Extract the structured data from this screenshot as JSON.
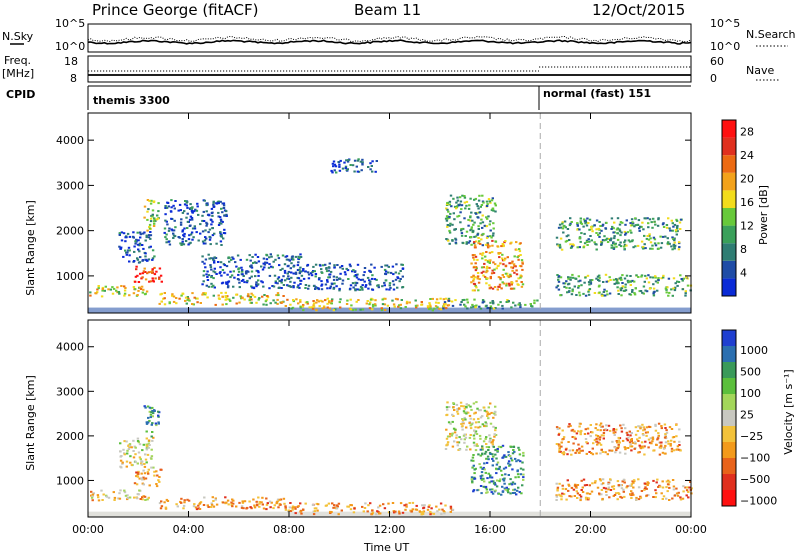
{
  "header": {
    "station": "Prince George (fitACF)",
    "beam": "Beam 11",
    "date": "12/Oct/2015"
  },
  "nsky_panel": {
    "left_label": "N.Sky",
    "right_label": "N.Search",
    "left_ticks": [
      "10^5",
      "10^0"
    ],
    "right_ticks": [
      "10^5",
      "10^0"
    ]
  },
  "freq_panel": {
    "left_label_1": "Freq.",
    "left_label_2": "[MHz]",
    "right_label": "Nave",
    "left_ticks": [
      "18",
      "8"
    ],
    "right_ticks": [
      "60",
      "0"
    ]
  },
  "cpid": {
    "label": "CPID",
    "modes": [
      {
        "name": "themis 3300",
        "start_hour": 0
      },
      {
        "name": "normal (fast) 151",
        "start_hour": 18
      }
    ]
  },
  "chart_data": [
    {
      "type": "heatmap",
      "title": "",
      "ylabel": "Slant Range [km]",
      "xlabel": "Time UT",
      "x_range_hours": [
        0,
        24
      ],
      "ylim": [
        180,
        4600
      ],
      "yticks": [
        "1000",
        "2000",
        "3000",
        "4000"
      ],
      "xticks": [
        "00:00",
        "04:00",
        "08:00",
        "12:00",
        "16:00",
        "20:00",
        "00:00"
      ],
      "colorbar": {
        "label": "Power [dB]",
        "tick_labels": [
          "4",
          "8",
          "12",
          "16",
          "20",
          "24",
          "28"
        ],
        "colors": [
          "#0a2bd6",
          "#1f4ca6",
          "#2f7d73",
          "#3aa05a",
          "#67c93a",
          "#f2dc1c",
          "#f3a21b",
          "#ec6a12",
          "#e0301e",
          "#ff1010"
        ]
      },
      "scatter_regions": [
        {
          "t0": 0.0,
          "t1": 2.4,
          "r0": 560,
          "r1": 800,
          "value": 20
        },
        {
          "t0": 1.8,
          "t1": 2.9,
          "r0": 880,
          "r1": 1280,
          "value": 28
        },
        {
          "t0": 1.2,
          "t1": 2.6,
          "r0": 1300,
          "r1": 2000,
          "value": 8
        },
        {
          "t0": 2.2,
          "t1": 2.8,
          "r0": 2000,
          "r1": 2700,
          "value": 16
        },
        {
          "t0": 3.0,
          "t1": 5.5,
          "r0": 1700,
          "r1": 2700,
          "value": 8
        },
        {
          "t0": 2.8,
          "t1": 7.8,
          "r0": 380,
          "r1": 650,
          "value": 20
        },
        {
          "t0": 4.5,
          "t1": 8.5,
          "r0": 750,
          "r1": 1500,
          "value": 8
        },
        {
          "t0": 7.8,
          "t1": 14.5,
          "r0": 260,
          "r1": 520,
          "value": 20
        },
        {
          "t0": 8.5,
          "t1": 12.5,
          "r0": 700,
          "r1": 1300,
          "value": 8
        },
        {
          "t0": 9.5,
          "t1": 11.5,
          "r0": 3300,
          "r1": 3600,
          "value": 8
        },
        {
          "t0": 14.2,
          "t1": 16.2,
          "r0": 1700,
          "r1": 2800,
          "value": 12
        },
        {
          "t0": 15.2,
          "t1": 17.3,
          "r0": 700,
          "r1": 1800,
          "value": 24
        },
        {
          "t0": 14.0,
          "t1": 18.0,
          "r0": 300,
          "r1": 500,
          "value": 12
        },
        {
          "t0": 18.6,
          "t1": 23.6,
          "r0": 1600,
          "r1": 2300,
          "value": 12
        },
        {
          "t0": 18.6,
          "t1": 24.0,
          "r0": 580,
          "r1": 1050,
          "value": 12
        }
      ]
    },
    {
      "type": "heatmap",
      "title": "",
      "ylabel": "Slant Range [km]",
      "xlabel": "Time UT",
      "x_range_hours": [
        0,
        24
      ],
      "ylim": [
        180,
        4600
      ],
      "yticks": [
        "1000",
        "2000",
        "3000",
        "4000"
      ],
      "xticks": [
        "00:00",
        "04:00",
        "08:00",
        "12:00",
        "16:00",
        "20:00",
        "00:00"
      ],
      "colorbar": {
        "label": "Velocity [m s⁻¹]",
        "tick_labels": [
          "1000",
          "500",
          "100",
          "25",
          "−25",
          "−100",
          "−500",
          "−1000"
        ],
        "colors": [
          "#1f3fd0",
          "#2b6fb0",
          "#3a9a5a",
          "#5bbf3c",
          "#a3d65a",
          "#c8c8c0",
          "#f3c23a",
          "#f39a1b",
          "#e8631b",
          "#e0301e",
          "#ff1010"
        ]
      },
      "scatter_regions": [
        {
          "t0": 0.0,
          "t1": 2.4,
          "r0": 560,
          "r1": 800,
          "value": -25
        },
        {
          "t0": 1.8,
          "t1": 2.9,
          "r0": 880,
          "r1": 1280,
          "value": -100
        },
        {
          "t0": 1.2,
          "t1": 2.6,
          "r0": 1300,
          "r1": 2000,
          "value": 0
        },
        {
          "t0": 2.2,
          "t1": 2.8,
          "r0": 2000,
          "r1": 2700,
          "value": 100
        },
        {
          "t0": 2.8,
          "t1": 7.8,
          "r0": 380,
          "r1": 650,
          "value": -100
        },
        {
          "t0": 7.8,
          "t1": 14.5,
          "r0": 260,
          "r1": 520,
          "value": -100
        },
        {
          "t0": 14.2,
          "t1": 16.2,
          "r0": 1700,
          "r1": 2800,
          "value": 0
        },
        {
          "t0": 15.2,
          "t1": 17.3,
          "r0": 700,
          "r1": 1800,
          "value": 100
        },
        {
          "t0": 18.6,
          "t1": 23.6,
          "r0": 1600,
          "r1": 2300,
          "value": -100
        },
        {
          "t0": 18.6,
          "t1": 24.0,
          "r0": 580,
          "r1": 1050,
          "value": -100
        }
      ]
    }
  ]
}
